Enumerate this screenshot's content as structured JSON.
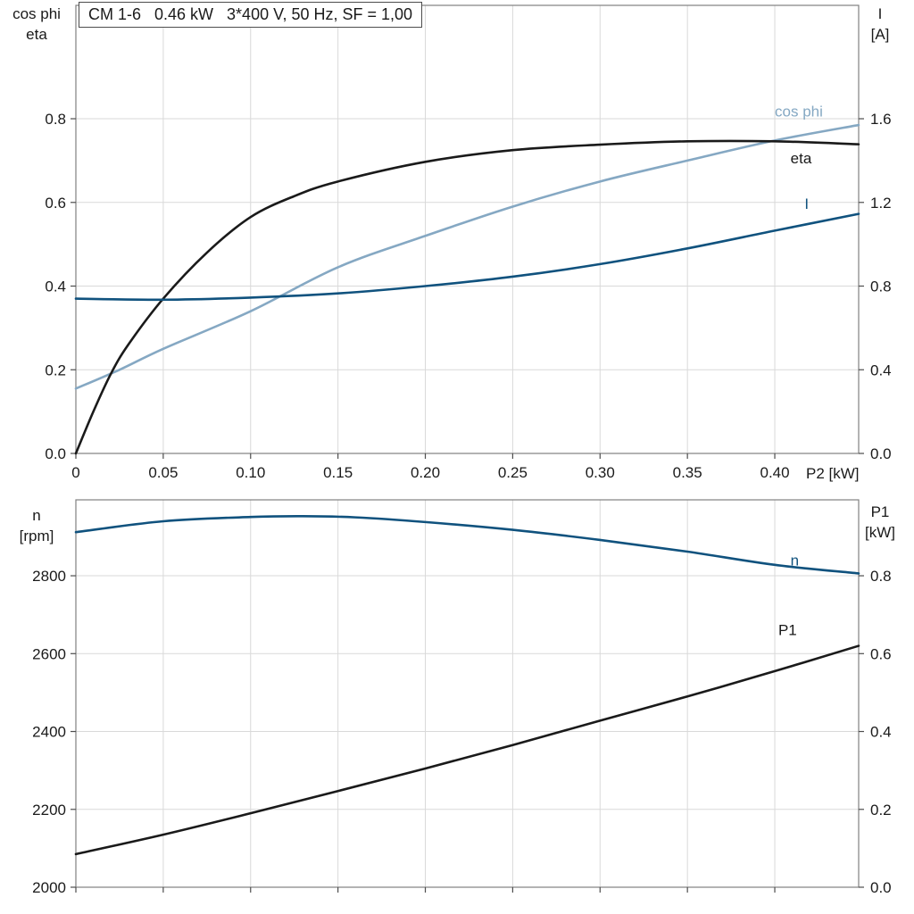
{
  "title_box": "CM 1-6   0.46 kW   3*400 V, 50 Hz, SF = 1,00",
  "colors": {
    "black": "#1a1a1a",
    "light_blue": "#85a8c3",
    "dark_blue": "#10527e",
    "grid": "#d9d9d9",
    "frame": "#808080",
    "tick": "#4d4d4d",
    "text": "#1a1a1a"
  },
  "axis_corner_labels": {
    "top_left": [
      "cos phi",
      "eta"
    ],
    "top_right": [
      "I",
      "[A]"
    ],
    "bottom_left": [
      "n",
      "[rpm]"
    ],
    "bottom_right": [
      "P1",
      "[kW]"
    ]
  },
  "chart_data": [
    {
      "type": "line",
      "title": "CM 1-6   0.46 kW   3*400 V, 50 Hz, SF = 1,00",
      "x_axis": {
        "label": "P2 [kW]",
        "min": 0,
        "max": 0.448,
        "ticks": [
          0,
          0.05,
          0.1,
          0.15,
          0.2,
          0.25,
          0.3,
          0.35,
          0.4
        ],
        "tick_labels": [
          "0",
          "0.05",
          "0.10",
          "0.15",
          "0.20",
          "0.25",
          "0.30",
          "0.35",
          "0.40"
        ],
        "show_labels": true
      },
      "y_left": {
        "label": "cos phi / eta",
        "min": 0,
        "max": 1.071,
        "ticks": [
          0,
          0.2,
          0.4,
          0.6,
          0.8
        ],
        "tick_labels": [
          "0.0",
          "0.2",
          "0.4",
          "0.6",
          "0.8"
        ]
      },
      "y_right": {
        "label": "I [A]",
        "min": 0,
        "max": 2.142,
        "ticks": [
          0,
          0.4,
          0.8,
          1.2,
          1.6
        ],
        "tick_labels": [
          "0.0",
          "0.4",
          "0.8",
          "1.2",
          "1.6"
        ]
      },
      "series": [
        {
          "name": "cos phi",
          "axis": "left",
          "color": "light_blue",
          "label_pos": [
            0.4,
            0.805
          ],
          "points": [
            [
              0,
              0.155
            ],
            [
              0.025,
              0.2
            ],
            [
              0.05,
              0.25
            ],
            [
              0.1,
              0.34
            ],
            [
              0.15,
              0.445
            ],
            [
              0.2,
              0.52
            ],
            [
              0.25,
              0.59
            ],
            [
              0.3,
              0.65
            ],
            [
              0.35,
              0.7
            ],
            [
              0.4,
              0.748
            ],
            [
              0.448,
              0.785
            ]
          ]
        },
        {
          "name": "eta",
          "axis": "left",
          "color": "black",
          "label_pos": [
            0.409,
            0.693
          ],
          "points": [
            [
              0,
              0
            ],
            [
              0.01,
              0.1
            ],
            [
              0.02,
              0.19
            ],
            [
              0.03,
              0.26
            ],
            [
              0.05,
              0.37
            ],
            [
              0.075,
              0.48
            ],
            [
              0.1,
              0.565
            ],
            [
              0.125,
              0.615
            ],
            [
              0.15,
              0.65
            ],
            [
              0.2,
              0.697
            ],
            [
              0.25,
              0.725
            ],
            [
              0.3,
              0.738
            ],
            [
              0.35,
              0.746
            ],
            [
              0.4,
              0.746
            ],
            [
              0.448,
              0.739
            ]
          ]
        },
        {
          "name": "I",
          "axis": "right",
          "color": "dark_blue",
          "label_pos": [
            0.417,
            1.17
          ],
          "points": [
            [
              0,
              0.74
            ],
            [
              0.05,
              0.735
            ],
            [
              0.1,
              0.745
            ],
            [
              0.15,
              0.765
            ],
            [
              0.2,
              0.8
            ],
            [
              0.25,
              0.845
            ],
            [
              0.3,
              0.905
            ],
            [
              0.35,
              0.98
            ],
            [
              0.4,
              1.065
            ],
            [
              0.448,
              1.145
            ]
          ]
        }
      ]
    },
    {
      "type": "line",
      "title": "",
      "x_axis": {
        "label": "",
        "min": 0,
        "max": 0.448,
        "ticks": [
          0,
          0.05,
          0.1,
          0.15,
          0.2,
          0.25,
          0.3,
          0.35,
          0.4
        ],
        "tick_labels": [],
        "show_labels": false
      },
      "y_left": {
        "label": "n [rpm]",
        "min": 2000,
        "max": 2995,
        "ticks": [
          2000,
          2200,
          2400,
          2600,
          2800
        ],
        "tick_labels": [
          "2000",
          "2200",
          "2400",
          "2600",
          "2800"
        ]
      },
      "y_right": {
        "label": "P1 [kW]",
        "min": 0,
        "max": 0.995,
        "ticks": [
          0,
          0.2,
          0.4,
          0.6,
          0.8
        ],
        "tick_labels": [
          "0.0",
          "0.2",
          "0.4",
          "0.6",
          "0.8"
        ]
      },
      "series": [
        {
          "name": "n",
          "axis": "left",
          "color": "dark_blue",
          "label_pos": [
            0.409,
            2826
          ],
          "points": [
            [
              0,
              2912
            ],
            [
              0.05,
              2940
            ],
            [
              0.1,
              2951
            ],
            [
              0.13,
              2953
            ],
            [
              0.16,
              2950
            ],
            [
              0.2,
              2938
            ],
            [
              0.25,
              2918
            ],
            [
              0.3,
              2892
            ],
            [
              0.35,
              2862
            ],
            [
              0.4,
              2828
            ],
            [
              0.448,
              2806
            ]
          ]
        },
        {
          "name": "P1",
          "axis": "right",
          "color": "black",
          "label_pos": [
            0.402,
            0.648
          ],
          "points": [
            [
              0,
              0.085
            ],
            [
              0.05,
              0.135
            ],
            [
              0.1,
              0.19
            ],
            [
              0.15,
              0.247
            ],
            [
              0.2,
              0.305
            ],
            [
              0.25,
              0.365
            ],
            [
              0.3,
              0.428
            ],
            [
              0.35,
              0.49
            ],
            [
              0.4,
              0.555
            ],
            [
              0.448,
              0.62
            ]
          ]
        }
      ]
    }
  ]
}
